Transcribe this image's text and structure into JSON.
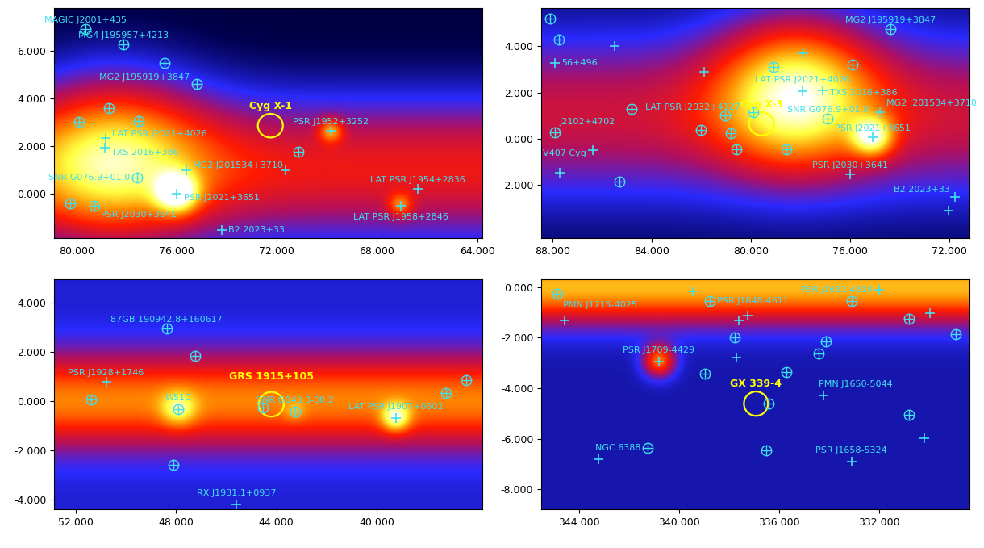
{
  "chart_data": [
    {
      "type": "sky_map",
      "xlim": [
        80.9,
        63.8
      ],
      "ylim": [
        -1.9,
        7.8
      ],
      "xticks": [
        {
          "value": 80,
          "label": "80.000"
        },
        {
          "value": 76,
          "label": "76.000"
        },
        {
          "value": 72,
          "label": "72.000"
        },
        {
          "value": 68,
          "label": "68.000"
        },
        {
          "value": 64,
          "label": "64.000"
        }
      ],
      "yticks": [
        {
          "value": 0,
          "label": "0.000"
        },
        {
          "value": 2,
          "label": "2.000"
        },
        {
          "value": 4,
          "label": "4.000"
        },
        {
          "value": 6,
          "label": "6.000"
        }
      ],
      "emission": {
        "range": [
          0,
          1
        ],
        "floor": 0.12,
        "colors": [
          "#000000",
          "#00004d",
          "#2a2aff",
          "#b01060",
          "#ff1a00",
          "#ff8c00",
          "#ffff40",
          "#ffffff"
        ],
        "plane": {
          "b": 1.0,
          "width": 2.2,
          "level": 0.42
        },
        "blobs": [
          {
            "l": 78.5,
            "b": 1.5,
            "width": 2.5,
            "level": 0.42
          },
          {
            "l": 76.0,
            "b": 0.0,
            "width": 0.6,
            "level": 0.5
          },
          {
            "l": 69.84,
            "b": 2.62,
            "width": 0.35,
            "level": 0.3
          },
          {
            "l": 67.06,
            "b": -0.53,
            "width": 0.35,
            "level": 0.25
          }
        ]
      },
      "sources": {
        "color": "#3fe0f0",
        "points": [
          {
            "name": "MAGIC J2001+435",
            "l": 79.66,
            "b": 6.91,
            "marker": "circle"
          },
          {
            "name": "MG4 J195957+4213",
            "l": 78.13,
            "b": 6.26,
            "marker": "circle"
          },
          {
            "l": 76.48,
            "b": 5.5,
            "marker": "circle"
          },
          {
            "name": "MG2 J195919+3847",
            "l": 75.2,
            "b": 4.6,
            "marker": "circle"
          },
          {
            "l": 79.89,
            "b": 3.0,
            "marker": "circle"
          },
          {
            "l": 78.7,
            "b": 3.59,
            "marker": "circle"
          },
          {
            "l": 77.53,
            "b": 3.03,
            "marker": "circle"
          },
          {
            "name": "LAT PSR J2021+4026",
            "l": 78.84,
            "b": 2.32,
            "marker": "plus"
          },
          {
            "name": "TXS 2016+386",
            "l": 78.87,
            "b": 1.91,
            "marker": "plus"
          },
          {
            "name": "SNR G076.9+01.0",
            "l": 77.6,
            "b": 0.65,
            "marker": "circle"
          },
          {
            "name": "MG2 J201534+3710",
            "l": 75.63,
            "b": 0.97,
            "marker": "plus"
          },
          {
            "name": "PSR J2021+3651",
            "l": 76.0,
            "b": 0.0,
            "marker": "plus"
          },
          {
            "name": "PSR J2030+3641",
            "l": 79.3,
            "b": -0.53,
            "marker": "circle"
          },
          {
            "name": "B2 2023+33",
            "l": 74.2,
            "b": -1.55,
            "marker": "plus"
          },
          {
            "name": "PSR J1952+3252",
            "l": 69.84,
            "b": 2.62,
            "marker": "plus"
          },
          {
            "l": 71.15,
            "b": 1.76,
            "marker": "circle"
          },
          {
            "l": 71.66,
            "b": 0.97,
            "marker": "plus"
          },
          {
            "name": "LAT PSR J1954+2836",
            "l": 66.38,
            "b": 0.2,
            "marker": "plus"
          },
          {
            "name": "LAT PSR J1958+2846",
            "l": 67.06,
            "b": -0.53,
            "marker": "plus"
          },
          {
            "l": 80.25,
            "b": -0.44,
            "marker": "circle"
          }
        ]
      },
      "targets": {
        "color": "#ffff00",
        "points": [
          {
            "name": "Cyg X-1",
            "l": 72.26,
            "b": 2.85,
            "radius": 0.5
          }
        ]
      }
    },
    {
      "type": "sky_map",
      "xlim": [
        88.45,
        71.2
      ],
      "ylim": [
        -4.3,
        5.65
      ],
      "xticks": [
        {
          "value": 88,
          "label": "88.000"
        },
        {
          "value": 84,
          "label": "84.000"
        },
        {
          "value": 80,
          "label": "80.000"
        },
        {
          "value": 76,
          "label": "76.000"
        },
        {
          "value": 72,
          "label": "72.000"
        }
      ],
      "yticks": [
        {
          "value": -2,
          "label": "-2.000"
        },
        {
          "value": 0,
          "label": "0.000"
        },
        {
          "value": 2,
          "label": "2.000"
        },
        {
          "value": 4,
          "label": "4.000"
        }
      ],
      "emission": {
        "range": [
          0,
          1
        ],
        "floor": 0.15,
        "colors": [
          "#000000",
          "#00004d",
          "#2a2aff",
          "#b01060",
          "#ff1a00",
          "#ff8c00",
          "#ffff40",
          "#ffffff"
        ],
        "plane": {
          "b": 1.0,
          "width": 2.5,
          "level": 0.33
        },
        "blobs": [
          {
            "l": 78.2,
            "b": 2.0,
            "width": 2.2,
            "level": 0.55
          },
          {
            "l": 75.1,
            "b": 0.08,
            "width": 0.6,
            "level": 0.45
          }
        ]
      },
      "sources": {
        "color": "#3fe0f0",
        "points": [
          {
            "name": "MG2 J195919+3847",
            "l": 74.38,
            "b": 4.76,
            "marker": "circle"
          },
          {
            "name": "56+496",
            "l": 87.9,
            "b": 3.3,
            "marker": "plus"
          },
          {
            "name": "J2102+4702",
            "l": 87.9,
            "b": 0.3,
            "marker": "circle"
          },
          {
            "name": "V407 Cyg",
            "l": 86.36,
            "b": -0.49,
            "marker": "plus"
          },
          {
            "name": "LAT PSR J2021+4026",
            "l": 77.93,
            "b": 2.06,
            "marker": "plus"
          },
          {
            "name": "TXS 2016+386",
            "l": 77.1,
            "b": 2.1,
            "marker": "plus"
          },
          {
            "name": "LAT PSR J2032+4127",
            "l": 79.9,
            "b": 1.16,
            "marker": "circle"
          },
          {
            "name": "SNR G076.9+01.0",
            "l": 76.9,
            "b": 0.86,
            "marker": "circle"
          },
          {
            "name": "MG2 J201534+3710",
            "l": 74.8,
            "b": 1.16,
            "marker": "plus"
          },
          {
            "name": "PSR J2021+3651",
            "l": 75.1,
            "b": 0.08,
            "marker": "plus"
          },
          {
            "name": "PSR J2030+3641",
            "l": 76.0,
            "b": -1.54,
            "marker": "plus"
          },
          {
            "name": "B2 2023+33",
            "l": 71.76,
            "b": -2.5,
            "marker": "plus"
          },
          {
            "l": 88.1,
            "b": 5.2,
            "marker": "circle"
          },
          {
            "l": 87.75,
            "b": 4.3,
            "marker": "circle"
          },
          {
            "l": 85.5,
            "b": 4.0,
            "marker": "plus"
          },
          {
            "l": 84.8,
            "b": 1.3,
            "marker": "circle"
          },
          {
            "l": 85.3,
            "b": -1.84,
            "marker": "circle"
          },
          {
            "l": 87.7,
            "b": -1.45,
            "marker": "plus"
          },
          {
            "l": 81.9,
            "b": 2.9,
            "marker": "plus"
          },
          {
            "l": 81.05,
            "b": 1.0,
            "marker": "circle"
          },
          {
            "l": 80.8,
            "b": 0.26,
            "marker": "circle"
          },
          {
            "l": 82.0,
            "b": 0.4,
            "marker": "circle"
          },
          {
            "l": 80.57,
            "b": -0.46,
            "marker": "circle"
          },
          {
            "l": 78.58,
            "b": -0.46,
            "marker": "circle"
          },
          {
            "l": 79.1,
            "b": 3.1,
            "marker": "circle"
          },
          {
            "l": 77.87,
            "b": 3.7,
            "marker": "plus"
          },
          {
            "l": 75.9,
            "b": 3.2,
            "marker": "circle"
          },
          {
            "l": 72.05,
            "b": -3.1,
            "marker": "plus"
          }
        ]
      },
      "targets": {
        "color": "#ffff00",
        "points": [
          {
            "name": "Cyg X-3",
            "l": 79.57,
            "b": 0.65,
            "radius": 0.5
          }
        ]
      }
    },
    {
      "type": "sky_map",
      "xlim": [
        52.85,
        35.8
      ],
      "ylim": [
        -4.4,
        4.95
      ],
      "xticks": [
        {
          "value": 52,
          "label": "52.000"
        },
        {
          "value": 48,
          "label": "48.000"
        },
        {
          "value": 44,
          "label": "44.000"
        },
        {
          "value": 40,
          "label": "40.000"
        }
      ],
      "yticks": [
        {
          "value": -4,
          "label": "-4.000"
        },
        {
          "value": -2,
          "label": "-2.000"
        },
        {
          "value": 0,
          "label": "0.000"
        },
        {
          "value": 2,
          "label": "2.000"
        },
        {
          "value": 4,
          "label": "4.000"
        }
      ],
      "emission": {
        "range": [
          0,
          1
        ],
        "floor": 0.25,
        "colors": [
          "#000000",
          "#00004d",
          "#2a2aff",
          "#b01060",
          "#ff1a00",
          "#ff8c00",
          "#ffff40",
          "#ffffff"
        ],
        "plane": {
          "b": 0.0,
          "width": 1.3,
          "level": 0.45
        },
        "blobs": [
          {
            "l": 47.9,
            "b": -0.33,
            "width": 0.5,
            "level": 0.25
          },
          {
            "l": 39.23,
            "b": -0.69,
            "width": 0.4,
            "level": 0.35
          },
          {
            "l": 43.26,
            "b": -0.42,
            "width": 0.3,
            "level": 0.1
          }
        ]
      },
      "sources": {
        "color": "#3fe0f0",
        "points": [
          {
            "name": "87GB 190942.8+160617",
            "l": 48.37,
            "b": 2.96,
            "marker": "circle"
          },
          {
            "name": "PSR J1928+1746",
            "l": 50.78,
            "b": 0.78,
            "marker": "plus"
          },
          {
            "name": "W51C",
            "l": 47.9,
            "b": -0.33,
            "marker": "circle"
          },
          {
            "name": "SNR G043.3-00.2",
            "l": 43.26,
            "b": -0.42,
            "marker": "circle"
          },
          {
            "name": "LAT PSR J1907+0602",
            "l": 39.23,
            "b": -0.69,
            "marker": "plus"
          },
          {
            "name": "RX J1931.1+0937",
            "l": 45.6,
            "b": -4.2,
            "marker": "plus"
          },
          {
            "l": 47.23,
            "b": 1.85,
            "marker": "circle"
          },
          {
            "l": 51.38,
            "b": 0.06,
            "marker": "circle"
          },
          {
            "l": 44.54,
            "b": -0.24,
            "marker": "circle"
          },
          {
            "l": 37.25,
            "b": 0.33,
            "marker": "circle"
          },
          {
            "l": 36.45,
            "b": 0.85,
            "marker": "circle"
          },
          {
            "l": 48.1,
            "b": -2.57,
            "marker": "circle"
          }
        ]
      },
      "targets": {
        "color": "#ffff00",
        "points": [
          {
            "name": "GRS 1915+105",
            "l": 44.2,
            "b": -0.12,
            "radius": 0.5
          }
        ]
      }
    },
    {
      "type": "sky_map",
      "xlim": [
        345.5,
        328.4
      ],
      "ylim": [
        -8.8,
        0.3
      ],
      "xticks": [
        {
          "value": 344,
          "label": "344.000"
        },
        {
          "value": 340,
          "label": "340.000"
        },
        {
          "value": 336,
          "label": "336.000"
        },
        {
          "value": 332,
          "label": "332.000"
        }
      ],
      "yticks": [
        {
          "value": -8,
          "label": "-8.000"
        },
        {
          "value": -6,
          "label": "-6.000"
        },
        {
          "value": -4,
          "label": "-4.000"
        },
        {
          "value": -2,
          "label": "-2.000"
        },
        {
          "value": 0,
          "label": "0.000"
        }
      ],
      "emission": {
        "range": [
          0,
          1
        ],
        "floor": 0.22,
        "colors": [
          "#000000",
          "#00004d",
          "#2a2aff",
          "#b01060",
          "#ff1a00",
          "#ff8c00",
          "#ffff40",
          "#ffffff"
        ],
        "plane": {
          "b": 0.0,
          "width": 1.0,
          "level": 0.55
        },
        "blobs": [
          {
            "l": 340.8,
            "b": -2.93,
            "width": 0.45,
            "level": 0.45
          }
        ]
      },
      "sources": {
        "color": "#3fe0f0",
        "points": [
          {
            "name": "PMN J1715-4025",
            "l": 344.85,
            "b": -0.26,
            "marker": "circle"
          },
          {
            "name": "PSR J1632-4818",
            "l": 332.0,
            "b": -0.12,
            "marker": "plus"
          },
          {
            "name": "PSR J1648-4611",
            "l": 338.76,
            "b": -0.55,
            "marker": "circle"
          },
          {
            "name": "PSR J1709-4429",
            "l": 340.8,
            "b": -2.93,
            "marker": "plus"
          },
          {
            "name": "PMN J1650-5044",
            "l": 334.23,
            "b": -4.29,
            "marker": "plus"
          },
          {
            "name": "NGC 6388",
            "l": 341.25,
            "b": -6.35,
            "marker": "circle"
          },
          {
            "name": "PSR J1658-5324",
            "l": 333.1,
            "b": -6.9,
            "marker": "plus"
          },
          {
            "l": 344.57,
            "b": -1.33,
            "marker": "plus"
          },
          {
            "l": 339.44,
            "b": -0.17,
            "marker": "plus"
          },
          {
            "l": 337.6,
            "b": -1.33,
            "marker": "plus"
          },
          {
            "l": 337.26,
            "b": -1.13,
            "marker": "plus"
          },
          {
            "l": 337.77,
            "b": -2.0,
            "marker": "circle"
          },
          {
            "l": 337.7,
            "b": -2.78,
            "marker": "plus"
          },
          {
            "l": 338.96,
            "b": -3.42,
            "marker": "circle"
          },
          {
            "l": 334.4,
            "b": -2.64,
            "marker": "circle"
          },
          {
            "l": 334.14,
            "b": -2.14,
            "marker": "circle"
          },
          {
            "l": 335.7,
            "b": -3.36,
            "marker": "circle"
          },
          {
            "l": 333.1,
            "b": -0.55,
            "marker": "circle"
          },
          {
            "l": 330.8,
            "b": -1.25,
            "marker": "circle"
          },
          {
            "l": 329.98,
            "b": -1.04,
            "marker": "plus"
          },
          {
            "l": 328.93,
            "b": -1.86,
            "marker": "circle"
          },
          {
            "l": 330.8,
            "b": -5.04,
            "marker": "circle"
          },
          {
            "l": 330.2,
            "b": -5.97,
            "marker": "plus"
          },
          {
            "l": 343.2,
            "b": -6.8,
            "marker": "plus"
          },
          {
            "l": 336.5,
            "b": -6.46,
            "marker": "circle"
          },
          {
            "l": 336.4,
            "b": -4.6,
            "marker": "circle"
          }
        ]
      },
      "targets": {
        "color": "#ffff00",
        "points": [
          {
            "name": "GX 339-4",
            "l": 336.92,
            "b": -4.61,
            "radius": 0.48
          }
        ]
      }
    }
  ]
}
